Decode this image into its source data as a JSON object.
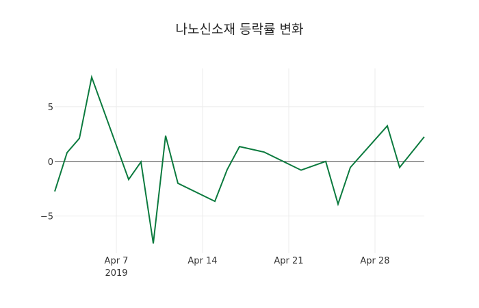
{
  "chart_data": {
    "type": "line",
    "title": "나노신소재 등락률 변화",
    "xlabel": "",
    "ylabel": "",
    "x": [
      "2019-04-02",
      "2019-04-03",
      "2019-04-04",
      "2019-04-05",
      "2019-04-08",
      "2019-04-09",
      "2019-04-10",
      "2019-04-11",
      "2019-04-12",
      "2019-04-15",
      "2019-04-16",
      "2019-04-17",
      "2019-04-19",
      "2019-04-22",
      "2019-04-24",
      "2019-04-25",
      "2019-04-26",
      "2019-04-29",
      "2019-04-30",
      "2019-05-02"
    ],
    "series": [
      {
        "name": "등락률",
        "color": "#0b7a3e",
        "values": [
          -2.75,
          0.8,
          2.1,
          7.7,
          -1.65,
          -0.05,
          -7.5,
          2.35,
          -2.0,
          -3.65,
          -0.75,
          1.35,
          0.85,
          -0.8,
          0.0,
          -3.9,
          -0.55,
          3.25,
          -0.55,
          2.25
        ]
      }
    ],
    "x_range": [
      "2019-04-02",
      "2019-05-02"
    ],
    "ylim": [
      -8.4,
      8.5
    ],
    "x_ticks": [
      {
        "date": "2019-04-07",
        "label": "Apr 7",
        "sublabel": "2019"
      },
      {
        "date": "2019-04-14",
        "label": "Apr 14",
        "sublabel": ""
      },
      {
        "date": "2019-04-21",
        "label": "Apr 21",
        "sublabel": ""
      },
      {
        "date": "2019-04-28",
        "label": "Apr 28",
        "sublabel": ""
      }
    ],
    "y_ticks": [
      {
        "value": 5,
        "label": "5"
      },
      {
        "value": 0,
        "label": "0"
      },
      {
        "value": -5,
        "label": "−5"
      }
    ],
    "grid": true,
    "zero_line": true,
    "legend": "none"
  }
}
